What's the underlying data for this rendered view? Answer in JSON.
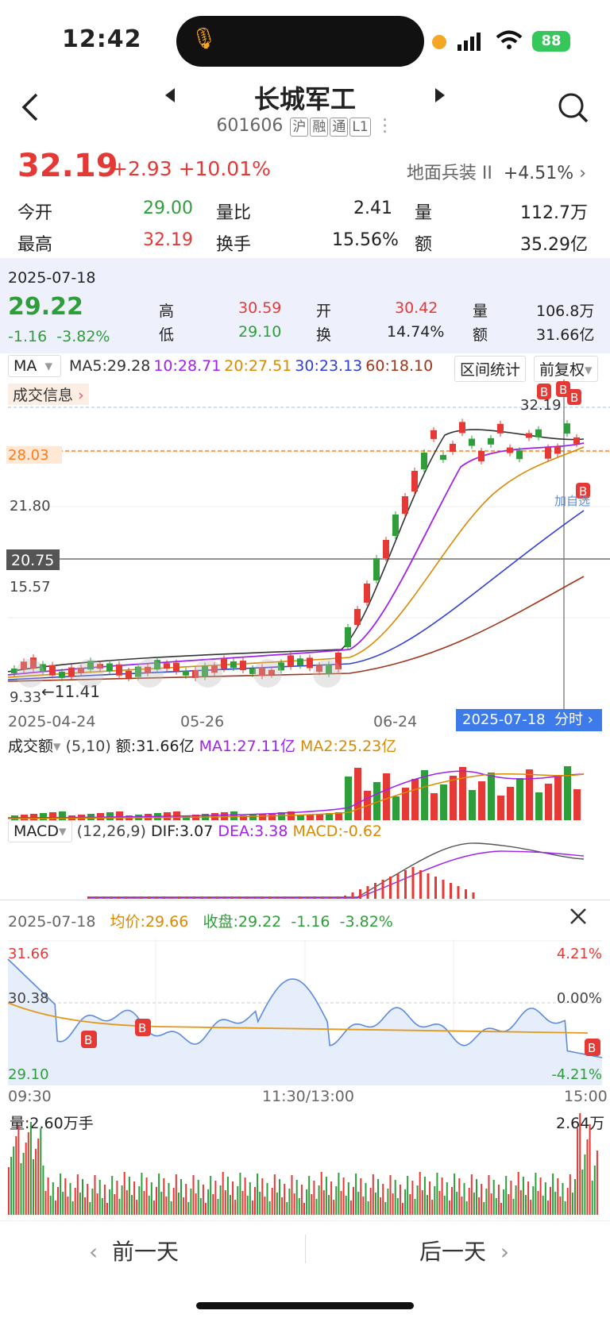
{
  "status_bar": {
    "time": "12:42",
    "battery": "88"
  },
  "nav": {
    "title": "长城军工",
    "code": "601606",
    "tags": [
      "沪",
      "融",
      "通",
      "L1"
    ]
  },
  "quote": {
    "price": "32.19",
    "change": "+2.93",
    "change_pct": "+10.01%",
    "sector_name": "地面兵装 II",
    "sector_change": "+4.51%",
    "open_label": "今开",
    "open": "29.00",
    "ratio_label": "量比",
    "ratio": "2.41",
    "vol_label": "量",
    "vol": "112.7万",
    "high_label": "最高",
    "high": "32.19",
    "turnover_label": "换手",
    "turnover": "15.56%",
    "amount_label": "额",
    "amount": "35.29亿"
  },
  "day_panel": {
    "date": "2025-07-18",
    "close": "29.22",
    "change": "-1.16",
    "change_pct": "-3.82%",
    "high_label": "高",
    "high": "30.59",
    "low_label": "低",
    "low": "29.10",
    "open_label": "开",
    "open": "30.42",
    "turn_label": "换",
    "turn": "14.74%",
    "vol_label": "量",
    "vol": "106.8万",
    "amt_label": "额",
    "amt": "31.66亿"
  },
  "kline": {
    "ma_select": "MA",
    "ma5": "MA5:29.28",
    "ma10": "10:28.71",
    "ma20": "20:27.51",
    "ma30": "30:23.13",
    "ma60": "60:18.10",
    "range_stats": "区间统计",
    "adjust": "前复权",
    "trade_info": "成交信息",
    "y_labels": [
      "32.19",
      "28.03",
      "21.80",
      "15.57",
      "9.33"
    ],
    "crosshair_price": "20.75",
    "min_note": "←11.41",
    "max_note": "32.19",
    "x_labels": [
      "2025-04-24",
      "05-26",
      "06-24"
    ],
    "selected_date": "2025-07-18",
    "intraday_link": "分时",
    "add_watch": "加自选"
  },
  "volume": {
    "label": "成交额",
    "params": "(5,10)",
    "amount": "额:31.66亿",
    "ma1": "MA1:27.11亿",
    "ma2": "MA2:25.23亿"
  },
  "macd": {
    "label": "MACD",
    "params": "(12,26,9)",
    "dif": "DIF:3.07",
    "dea": "DEA:3.38",
    "macd": "MACD:-0.62"
  },
  "intraday": {
    "date": "2025-07-18",
    "avg": "均价:29.66",
    "close": "收盘:29.22",
    "change": "-1.16",
    "pct": "-3.82%",
    "y_top": "31.66",
    "y_mid": "30.38",
    "y_bot": "29.10",
    "pct_top": "4.21%",
    "pct_mid": "0.00%",
    "pct_bot": "-4.21%",
    "t_start": "09:30",
    "t_mid": "11:30/13:00",
    "t_end": "15:00",
    "vol_label": "量:2.60万手",
    "vol_max": "2.64万"
  },
  "footer": {
    "prev": "前一天",
    "next": "后一天"
  },
  "colors": {
    "up": "#e53935",
    "down": "#2e9e3a",
    "ma5": "#333333",
    "ma10": "#a020f0",
    "ma20": "#d98a00",
    "ma30": "#2f3fd6",
    "ma60": "#a0361a"
  }
}
